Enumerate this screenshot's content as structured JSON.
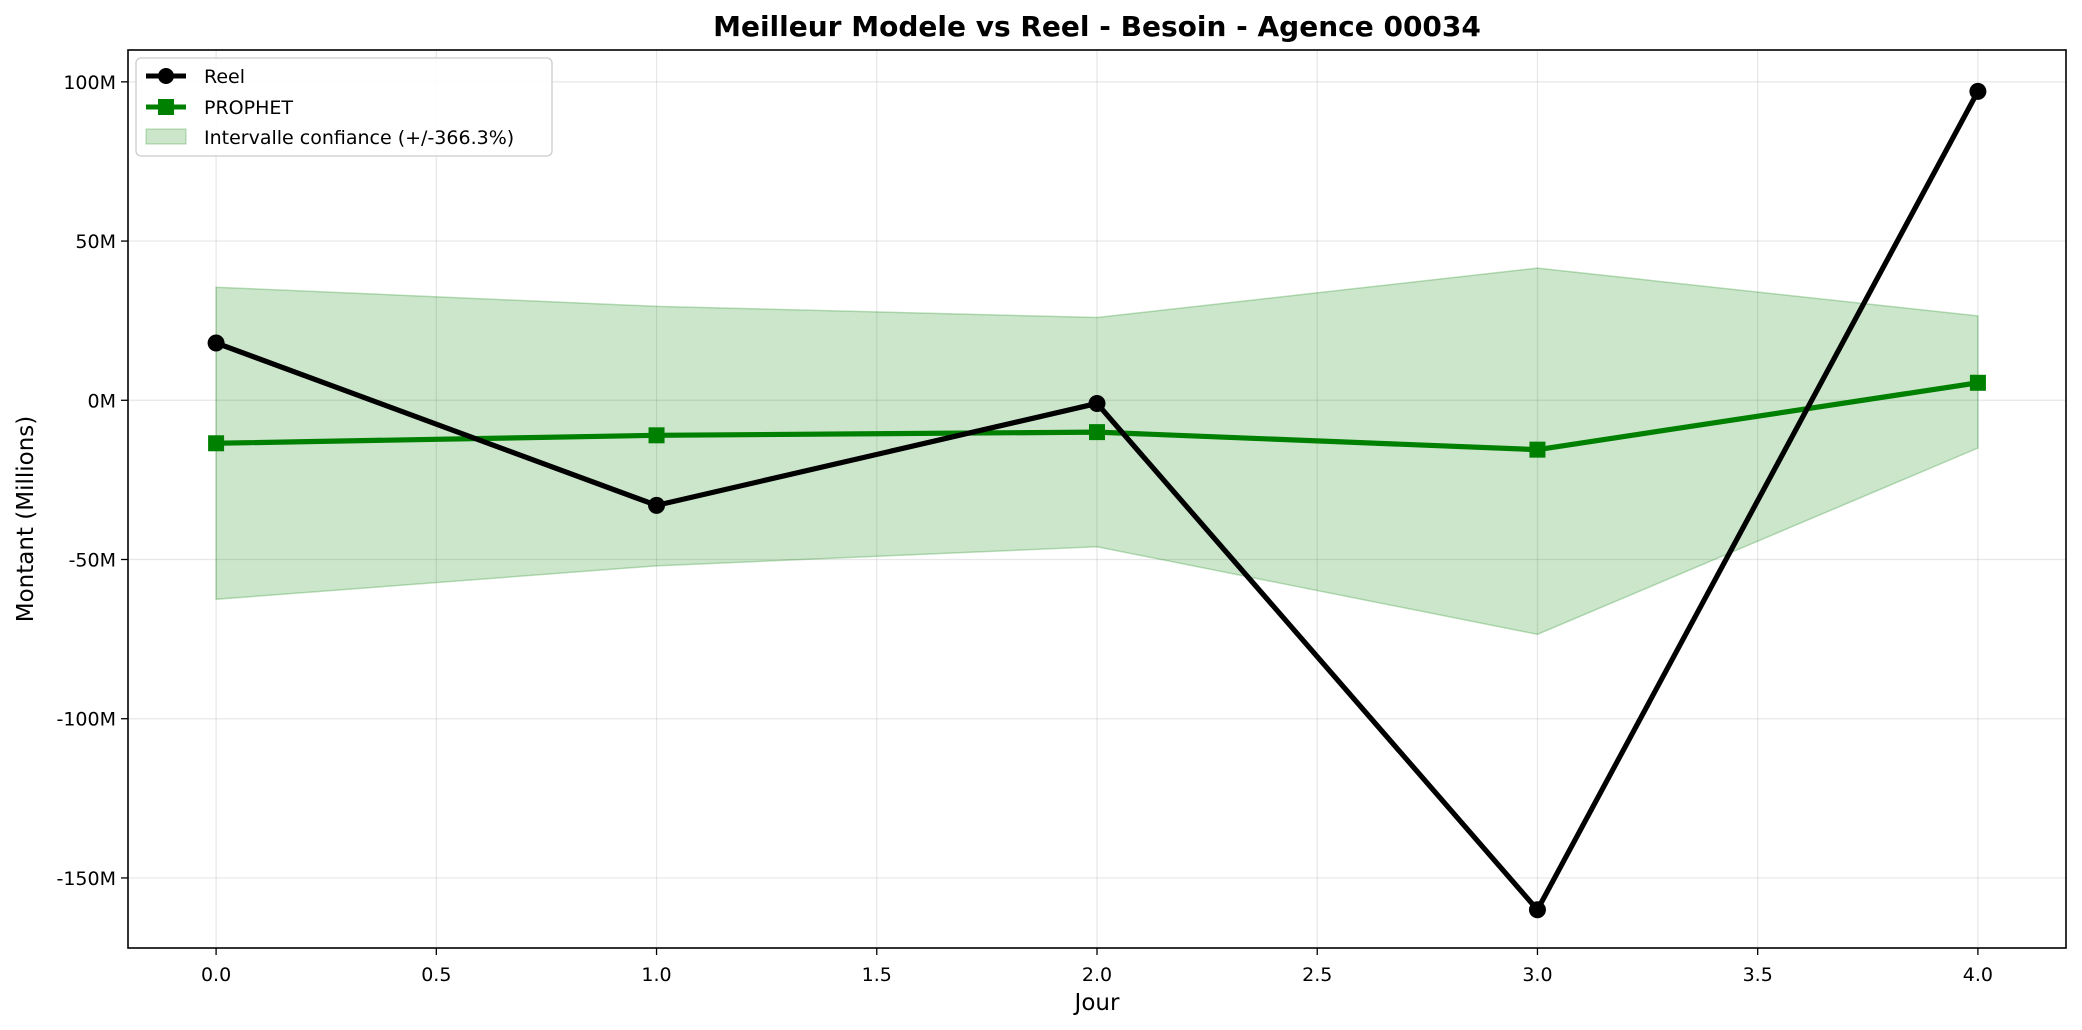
{
  "chart_data": {
    "type": "line",
    "title": "Meilleur Modele vs Reel - Besoin - Agence 00034",
    "xlabel": "Jour",
    "ylabel": "Montant (Millions)",
    "xlim": [
      -0.2,
      4.2
    ],
    "ylim": [
      -172,
      110
    ],
    "x_ticks": [
      0.0,
      0.5,
      1.0,
      1.5,
      2.0,
      2.5,
      3.0,
      3.5,
      4.0
    ],
    "x_tick_labels": [
      "0.0",
      "0.5",
      "1.0",
      "1.5",
      "2.0",
      "2.5",
      "3.0",
      "3.5",
      "4.0"
    ],
    "y_ticks": [
      100,
      50,
      0,
      -50,
      -100,
      -150
    ],
    "y_tick_labels": [
      "100M",
      "50M",
      "0M",
      "-50M",
      "-100M",
      "-150M"
    ],
    "grid": true,
    "legend_position": "top-left",
    "x": [
      0,
      1,
      2,
      3,
      4
    ],
    "series": [
      {
        "name": "Reel",
        "values": [
          18,
          -33,
          -1,
          -160,
          97
        ],
        "color": "#000000",
        "marker": "circle"
      },
      {
        "name": "PROPHET",
        "values": [
          -13.5,
          -11,
          -10,
          -15.5,
          5.5
        ],
        "color": "#008000",
        "marker": "square"
      }
    ],
    "band": {
      "name": "Intervalle confiance (+/-366.3%)",
      "lower": [
        -62.5,
        -52,
        -46,
        -73.5,
        -15
      ],
      "upper": [
        35.5,
        29.5,
        26,
        41.5,
        26.5
      ],
      "color": "#008000",
      "opacity": 0.2
    }
  }
}
